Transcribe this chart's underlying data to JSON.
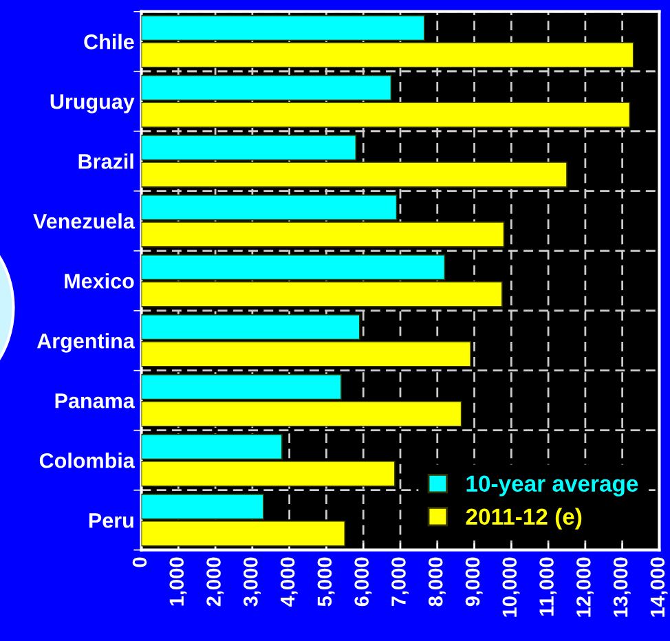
{
  "chart_data": {
    "type": "bar",
    "orientation": "horizontal",
    "categories": [
      "Chile",
      "Uruguay",
      "Brazil",
      "Venezuela",
      "Mexico",
      "Argentina",
      "Panama",
      "Colombia",
      "Peru"
    ],
    "series": [
      {
        "name": "10-year average",
        "color": "#00ffff",
        "values": [
          7650,
          6750,
          5800,
          6900,
          8200,
          5900,
          5400,
          3800,
          3300
        ]
      },
      {
        "name": "2011-12 (e)",
        "color": "#ffff00",
        "values": [
          13300,
          13200,
          11500,
          9800,
          9750,
          8900,
          8650,
          6850,
          5500
        ]
      }
    ],
    "xlim": [
      0,
      14000
    ],
    "xticks": [
      0,
      {
        "value": 1000,
        "label": "1,000"
      },
      {
        "value": 2000,
        "label": "2,000"
      },
      {
        "value": 3000,
        "label": "3,000"
      },
      {
        "value": 4000,
        "label": "4,000"
      },
      {
        "value": 5000,
        "label": "5,000"
      },
      {
        "value": 6000,
        "label": "6,000"
      },
      {
        "value": 7000,
        "label": "7,000"
      },
      {
        "value": 8000,
        "label": "8,000"
      },
      {
        "value": 9000,
        "label": "9,000"
      },
      {
        "value": 10000,
        "label": "10,000"
      },
      {
        "value": 11000,
        "label": "11,000"
      },
      {
        "value": 12000,
        "label": "12,000"
      },
      {
        "value": 13000,
        "label": "13,000"
      },
      {
        "value": 14000,
        "label": "14,000"
      }
    ],
    "grid": true,
    "legend": "bottom right"
  }
}
